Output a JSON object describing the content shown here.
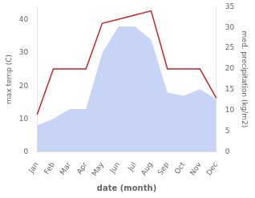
{
  "chart_data": {
    "type": "line",
    "categories": [
      "Jan",
      "Feb",
      "Mar",
      "Apr",
      "May",
      "Jun",
      "Jul",
      "Aug",
      "Sep",
      "Oct",
      "Nov",
      "Dec"
    ],
    "series": [
      {
        "type": "area",
        "color": "#c8d4f5",
        "values": [
          8.0,
          10.0,
          13.0,
          13.0,
          30.0,
          38.0,
          38.0,
          34.0,
          18.0,
          17.0,
          19.0,
          16.0
        ]
      },
      {
        "type": "line",
        "color": "#cc2222",
        "axis": "y2",
        "values": [
          9.0,
          20.0,
          20.0,
          20.0,
          31.0,
          32.0,
          33.0,
          34.0,
          20.0,
          20.0,
          20.0,
          13.0
        ]
      }
    ],
    "xlabel": "date (month)",
    "ylabel": "max temp (C)",
    "y2label": "med. precipitation (kg/m2)",
    "ylim": [
      0,
      44
    ],
    "yticks": [
      0,
      10,
      20,
      30,
      40
    ],
    "y2lim": [
      0,
      35
    ],
    "y2ticks": [
      0,
      5,
      10,
      15,
      20,
      25,
      30,
      35
    ],
    "grid": false,
    "legend": false
  }
}
